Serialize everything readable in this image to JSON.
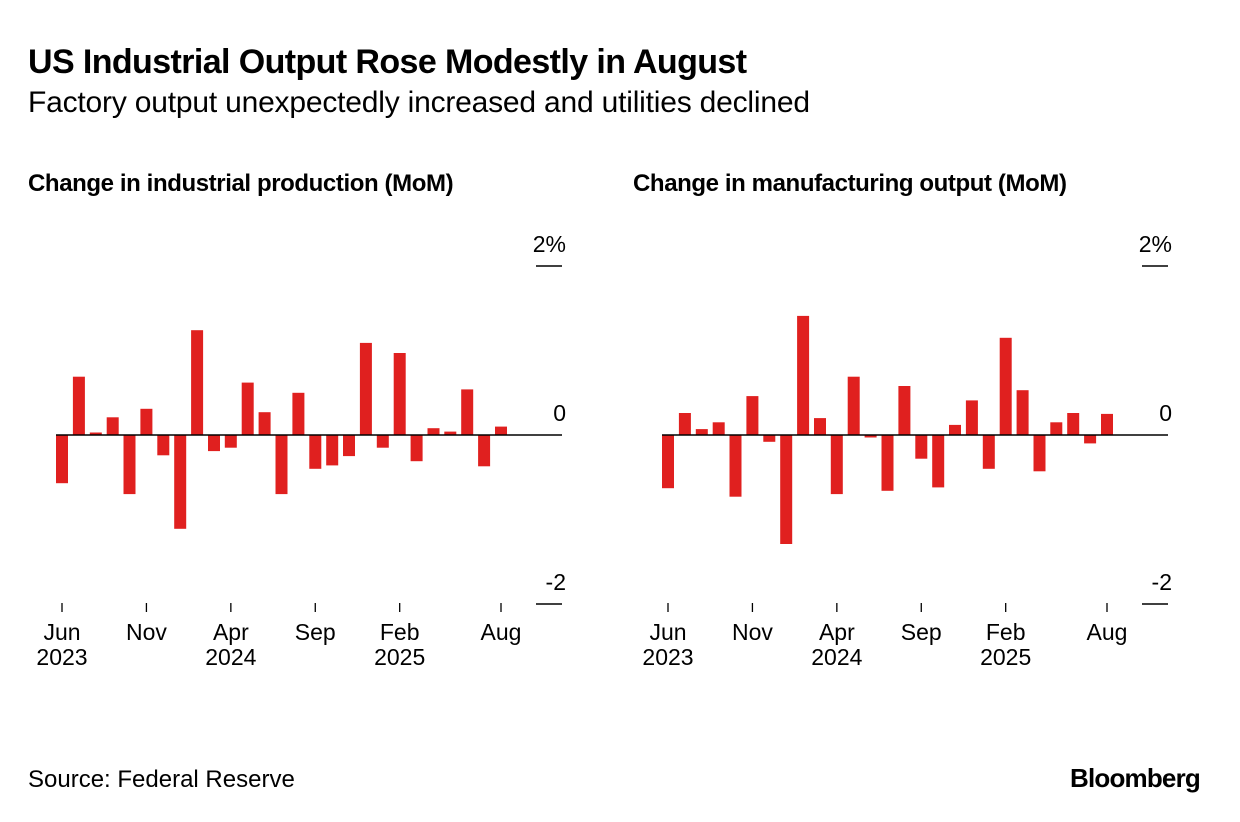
{
  "header": {
    "title": "US Industrial Output Rose Modestly in August",
    "subtitle": "Factory output unexpectedly increased and utilities declined"
  },
  "footer": {
    "source": "Source: Federal Reserve",
    "brand": "Bloomberg"
  },
  "colors": {
    "bar": "#e0201f",
    "axis": "#000000"
  },
  "chart_data": [
    {
      "type": "bar",
      "title": "Change in industrial production (MoM)",
      "xlabel": "",
      "ylabel": "",
      "unit": "%",
      "ylim": [
        -2,
        2
      ],
      "yticks": [
        {
          "value": 2,
          "label": "2%"
        },
        {
          "value": 0,
          "label": "0"
        },
        {
          "value": -2,
          "label": "-2"
        }
      ],
      "categories": [
        "Jun 2023",
        "Jul 2023",
        "Aug 2023",
        "Sep 2023",
        "Oct 2023",
        "Nov 2023",
        "Dec 2023",
        "Jan 2024",
        "Feb 2024",
        "Mar 2024",
        "Apr 2024",
        "May 2024",
        "Jun 2024",
        "Jul 2024",
        "Aug 2024",
        "Sep 2024",
        "Oct 2024",
        "Nov 2024",
        "Dec 2024",
        "Jan 2025",
        "Feb 2025",
        "Mar 2025",
        "Apr 2025",
        "May 2025",
        "Jun 2025",
        "Jul 2025",
        "Aug 2025"
      ],
      "xticks": [
        {
          "index": 0,
          "month": "Jun",
          "year": "2023"
        },
        {
          "index": 5,
          "month": "Nov",
          "year": ""
        },
        {
          "index": 10,
          "month": "Apr",
          "year": "2024"
        },
        {
          "index": 15,
          "month": "Sep",
          "year": ""
        },
        {
          "index": 20,
          "month": "Feb",
          "year": "2025"
        },
        {
          "index": 26,
          "month": "Aug",
          "year": ""
        }
      ],
      "values": [
        -0.57,
        0.69,
        0.03,
        0.21,
        -0.7,
        0.31,
        -0.24,
        -1.11,
        1.24,
        -0.19,
        -0.15,
        0.62,
        0.27,
        -0.7,
        0.5,
        -0.4,
        -0.36,
        -0.25,
        1.09,
        -0.15,
        0.97,
        -0.31,
        0.08,
        0.04,
        0.54,
        -0.37,
        0.1
      ],
      "grid": false,
      "legend": "none"
    },
    {
      "type": "bar",
      "title": "Change in manufacturing output (MoM)",
      "xlabel": "",
      "ylabel": "",
      "unit": "%",
      "ylim": [
        -2,
        2
      ],
      "yticks": [
        {
          "value": 2,
          "label": "2%"
        },
        {
          "value": 0,
          "label": "0"
        },
        {
          "value": -2,
          "label": "-2"
        }
      ],
      "categories": [
        "Jun 2023",
        "Jul 2023",
        "Aug 2023",
        "Sep 2023",
        "Oct 2023",
        "Nov 2023",
        "Dec 2023",
        "Jan 2024",
        "Feb 2024",
        "Mar 2024",
        "Apr 2024",
        "May 2024",
        "Jun 2024",
        "Jul 2024",
        "Aug 2024",
        "Sep 2024",
        "Oct 2024",
        "Nov 2024",
        "Dec 2024",
        "Jan 2025",
        "Feb 2025",
        "Mar 2025",
        "Apr 2025",
        "May 2025",
        "Jun 2025",
        "Jul 2025",
        "Aug 2025"
      ],
      "xticks": [
        {
          "index": 0,
          "month": "Jun",
          "year": "2023"
        },
        {
          "index": 5,
          "month": "Nov",
          "year": ""
        },
        {
          "index": 10,
          "month": "Apr",
          "year": "2024"
        },
        {
          "index": 15,
          "month": "Sep",
          "year": ""
        },
        {
          "index": 20,
          "month": "Feb",
          "year": "2025"
        },
        {
          "index": 26,
          "month": "Aug",
          "year": ""
        }
      ],
      "values": [
        -0.63,
        0.26,
        0.07,
        0.15,
        -0.73,
        0.46,
        -0.08,
        -1.29,
        1.41,
        0.2,
        -0.7,
        0.69,
        -0.03,
        -0.66,
        0.58,
        -0.28,
        -0.62,
        0.12,
        0.41,
        -0.4,
        1.15,
        0.53,
        -0.43,
        0.15,
        0.26,
        -0.1,
        0.25
      ],
      "grid": false,
      "legend": "none"
    }
  ]
}
